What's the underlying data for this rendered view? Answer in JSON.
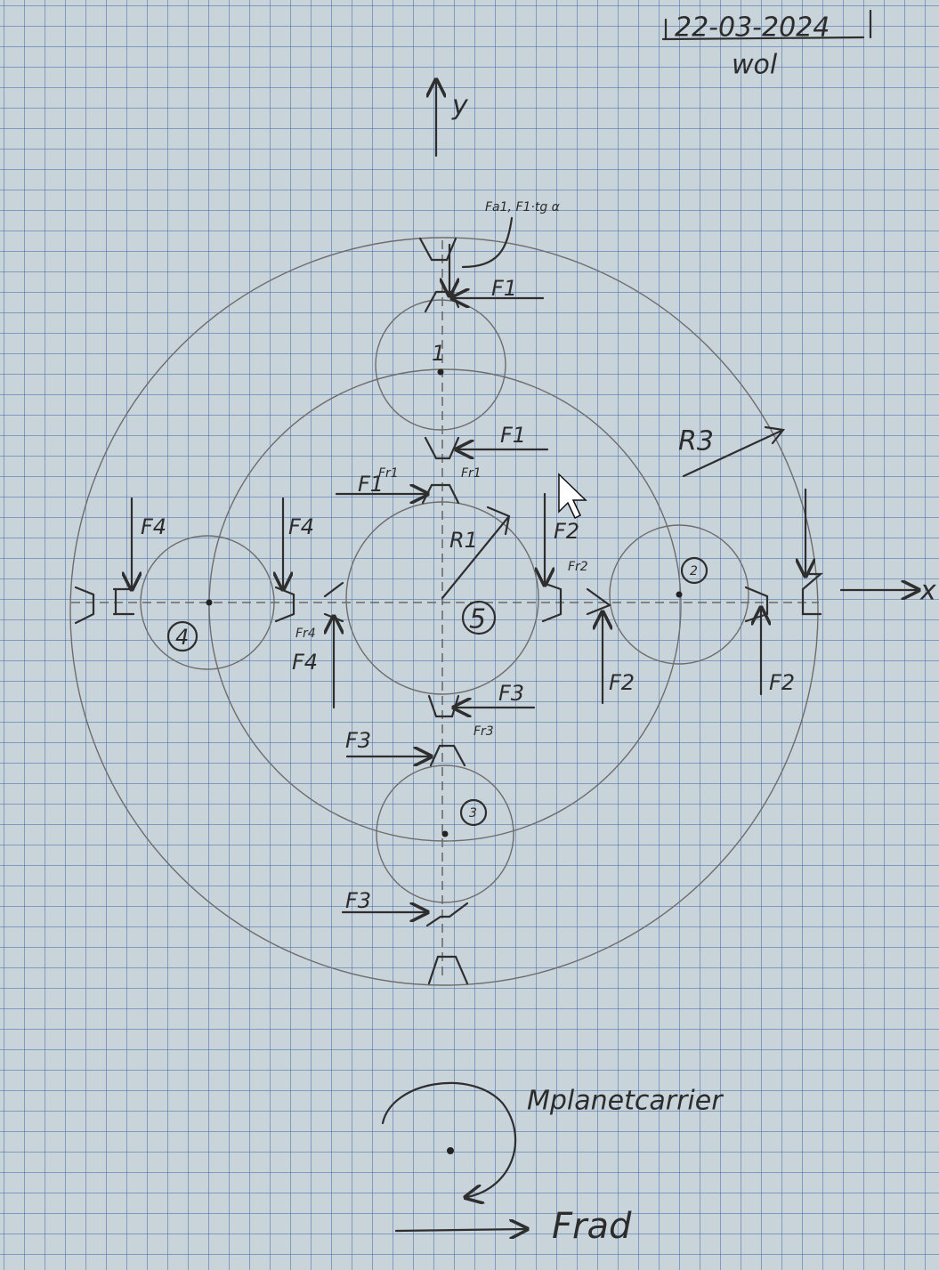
{
  "header": {
    "date": "22-03-2024",
    "author": "wol"
  },
  "axes": {
    "y": "y",
    "x": "x"
  },
  "radii": {
    "r1": "R1",
    "r3": "R3"
  },
  "gears": {
    "sun": "5",
    "planet_1": "1",
    "planet_2": "2",
    "planet_3": "3",
    "planet_4": "4"
  },
  "forces": [
    "Fa1, F1·tg α",
    "F1",
    "F1",
    "Fr1",
    "Fr1",
    "F1",
    "F4",
    "F4",
    "F2",
    "Fr2",
    "Fr4",
    "F4",
    "F2",
    "F2",
    "F3",
    "Fr3",
    "F3",
    "F3"
  ],
  "carrier": {
    "moment": "Mplanetcarrier",
    "radial_force": "Frad"
  }
}
